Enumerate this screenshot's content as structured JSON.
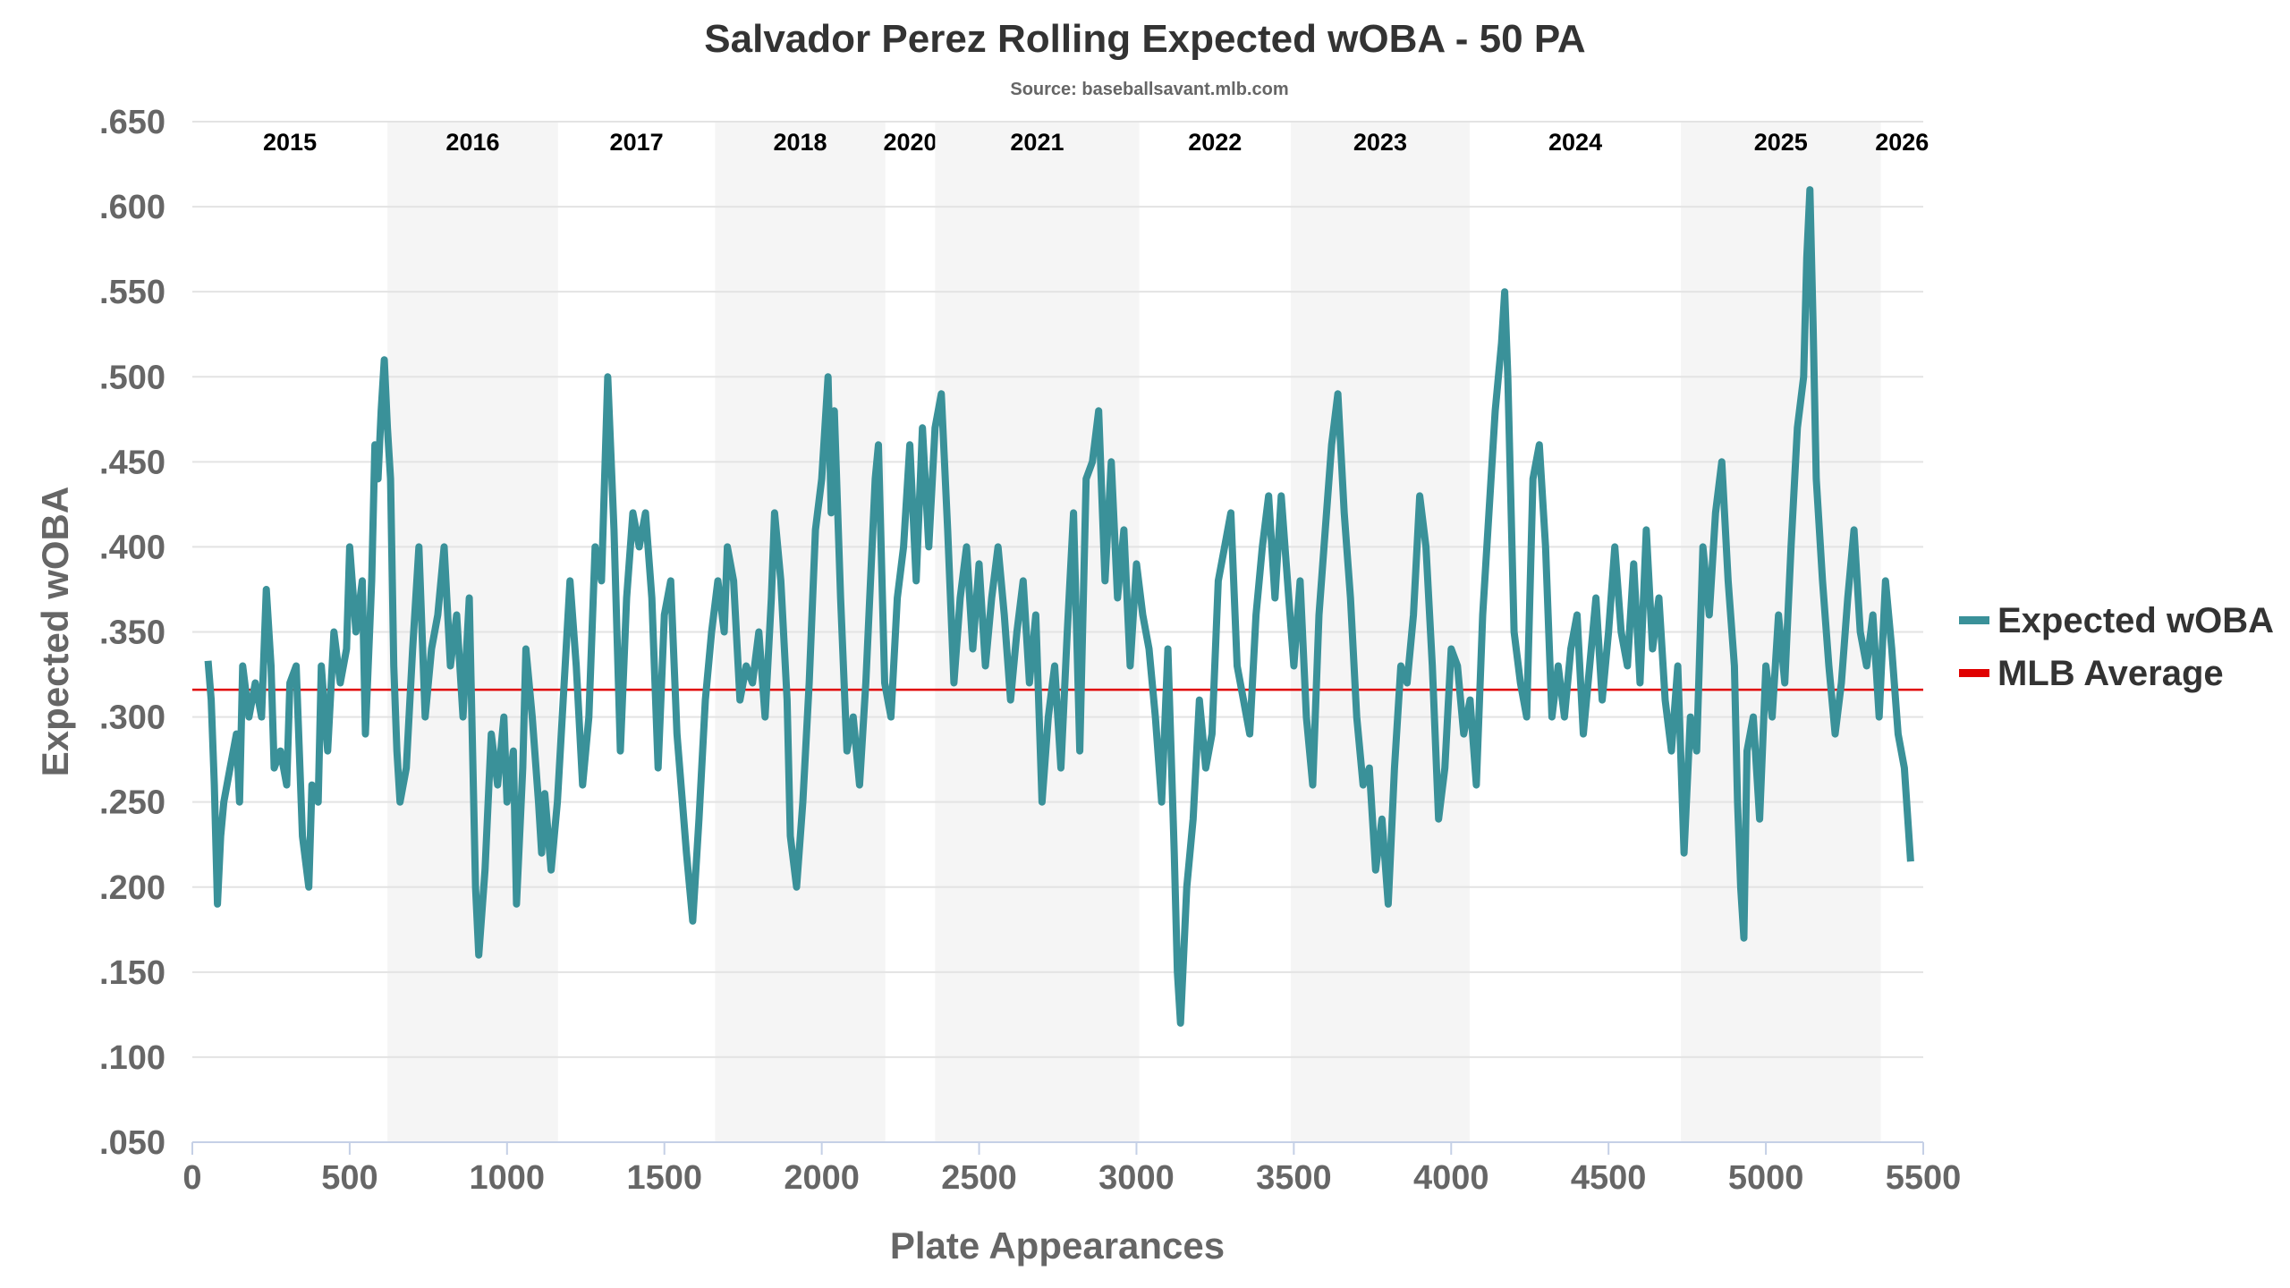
{
  "chart_data": {
    "type": "line",
    "title": "Salvador Perez Rolling Expected wOBA - 50 PA",
    "subtitle": "Source: baseballsavant.mlb.com",
    "xlabel": "Plate Appearances",
    "ylabel": "Expected wOBA",
    "xlim": [
      0,
      5500
    ],
    "ylim": [
      0.05,
      0.65
    ],
    "x_ticks": [
      0,
      500,
      1000,
      1500,
      2000,
      2500,
      3000,
      3500,
      4000,
      4500,
      5000,
      5500
    ],
    "y_ticks": [
      ".050",
      ".100",
      ".150",
      ".200",
      ".250",
      ".300",
      ".350",
      ".400",
      ".450",
      ".500",
      ".550",
      ".600",
      ".650"
    ],
    "grid": true,
    "legend_position": "right",
    "season_bands": [
      {
        "label": "2015",
        "start": 0,
        "end": 620,
        "shaded": false
      },
      {
        "label": "2016",
        "start": 620,
        "end": 1162,
        "shaded": true
      },
      {
        "label": "2017",
        "start": 1162,
        "end": 1661,
        "shaded": false
      },
      {
        "label": "2018",
        "start": 1661,
        "end": 2202,
        "shaded": true
      },
      {
        "label": "2020",
        "start": 2202,
        "end": 2360,
        "shaded": false
      },
      {
        "label": "2021",
        "start": 2360,
        "end": 3009,
        "shaded": true
      },
      {
        "label": "2022",
        "start": 3009,
        "end": 3490,
        "shaded": false
      },
      {
        "label": "2023",
        "start": 3490,
        "end": 4059,
        "shaded": true
      },
      {
        "label": "2024",
        "start": 4059,
        "end": 4730,
        "shaded": false
      },
      {
        "label": "2025",
        "start": 4730,
        "end": 5365,
        "shaded": true
      },
      {
        "label": "2026",
        "start": 5365,
        "end": 5500,
        "shaded": false
      }
    ],
    "mlb_average": 0.316,
    "series": [
      {
        "name": "Expected wOBA",
        "color": "#3a9199",
        "points": [
          [
            50,
            0.333
          ],
          [
            60,
            0.31
          ],
          [
            70,
            0.26
          ],
          [
            80,
            0.19
          ],
          [
            90,
            0.23
          ],
          [
            100,
            0.25
          ],
          [
            120,
            0.27
          ],
          [
            140,
            0.29
          ],
          [
            150,
            0.25
          ],
          [
            160,
            0.33
          ],
          [
            180,
            0.3
          ],
          [
            200,
            0.32
          ],
          [
            220,
            0.3
          ],
          [
            235,
            0.375
          ],
          [
            250,
            0.33
          ],
          [
            260,
            0.27
          ],
          [
            280,
            0.28
          ],
          [
            300,
            0.26
          ],
          [
            310,
            0.32
          ],
          [
            330,
            0.33
          ],
          [
            350,
            0.23
          ],
          [
            370,
            0.2
          ],
          [
            380,
            0.26
          ],
          [
            400,
            0.25
          ],
          [
            410,
            0.33
          ],
          [
            430,
            0.28
          ],
          [
            450,
            0.35
          ],
          [
            470,
            0.32
          ],
          [
            490,
            0.34
          ],
          [
            500,
            0.4
          ],
          [
            520,
            0.35
          ],
          [
            540,
            0.38
          ],
          [
            550,
            0.29
          ],
          [
            570,
            0.38
          ],
          [
            580,
            0.46
          ],
          [
            590,
            0.44
          ],
          [
            600,
            0.48
          ],
          [
            610,
            0.51
          ],
          [
            620,
            0.47
          ],
          [
            630,
            0.44
          ],
          [
            640,
            0.33
          ],
          [
            650,
            0.28
          ],
          [
            660,
            0.25
          ],
          [
            680,
            0.27
          ],
          [
            700,
            0.34
          ],
          [
            720,
            0.4
          ],
          [
            740,
            0.3
          ],
          [
            760,
            0.34
          ],
          [
            780,
            0.36
          ],
          [
            800,
            0.4
          ],
          [
            820,
            0.33
          ],
          [
            840,
            0.36
          ],
          [
            860,
            0.3
          ],
          [
            880,
            0.37
          ],
          [
            900,
            0.2
          ],
          [
            910,
            0.16
          ],
          [
            930,
            0.21
          ],
          [
            950,
            0.29
          ],
          [
            970,
            0.26
          ],
          [
            990,
            0.3
          ],
          [
            1000,
            0.25
          ],
          [
            1020,
            0.28
          ],
          [
            1030,
            0.19
          ],
          [
            1050,
            0.27
          ],
          [
            1060,
            0.34
          ],
          [
            1080,
            0.3
          ],
          [
            1100,
            0.25
          ],
          [
            1110,
            0.22
          ],
          [
            1120,
            0.255
          ],
          [
            1140,
            0.21
          ],
          [
            1160,
            0.25
          ],
          [
            1200,
            0.38
          ],
          [
            1220,
            0.33
          ],
          [
            1240,
            0.26
          ],
          [
            1260,
            0.3
          ],
          [
            1280,
            0.4
          ],
          [
            1300,
            0.38
          ],
          [
            1320,
            0.5
          ],
          [
            1340,
            0.41
          ],
          [
            1360,
            0.28
          ],
          [
            1380,
            0.37
          ],
          [
            1400,
            0.42
          ],
          [
            1420,
            0.4
          ],
          [
            1440,
            0.42
          ],
          [
            1460,
            0.37
          ],
          [
            1480,
            0.27
          ],
          [
            1500,
            0.36
          ],
          [
            1520,
            0.38
          ],
          [
            1540,
            0.29
          ],
          [
            1570,
            0.22
          ],
          [
            1590,
            0.18
          ],
          [
            1610,
            0.24
          ],
          [
            1630,
            0.31
          ],
          [
            1650,
            0.35
          ],
          [
            1670,
            0.38
          ],
          [
            1690,
            0.35
          ],
          [
            1700,
            0.4
          ],
          [
            1720,
            0.38
          ],
          [
            1740,
            0.31
          ],
          [
            1760,
            0.33
          ],
          [
            1780,
            0.32
          ],
          [
            1800,
            0.35
          ],
          [
            1820,
            0.3
          ],
          [
            1840,
            0.37
          ],
          [
            1850,
            0.42
          ],
          [
            1870,
            0.38
          ],
          [
            1890,
            0.31
          ],
          [
            1900,
            0.23
          ],
          [
            1920,
            0.2
          ],
          [
            1940,
            0.25
          ],
          [
            1960,
            0.32
          ],
          [
            1980,
            0.41
          ],
          [
            2000,
            0.44
          ],
          [
            2020,
            0.5
          ],
          [
            2030,
            0.42
          ],
          [
            2040,
            0.48
          ],
          [
            2060,
            0.37
          ],
          [
            2080,
            0.28
          ],
          [
            2100,
            0.3
          ],
          [
            2120,
            0.26
          ],
          [
            2140,
            0.32
          ],
          [
            2150,
            0.36
          ],
          [
            2170,
            0.44
          ],
          [
            2180,
            0.46
          ],
          [
            2200,
            0.32
          ],
          [
            2220,
            0.3
          ],
          [
            2240,
            0.37
          ],
          [
            2260,
            0.4
          ],
          [
            2280,
            0.46
          ],
          [
            2300,
            0.38
          ],
          [
            2320,
            0.47
          ],
          [
            2340,
            0.4
          ],
          [
            2360,
            0.47
          ],
          [
            2380,
            0.49
          ],
          [
            2400,
            0.41
          ],
          [
            2420,
            0.32
          ],
          [
            2440,
            0.37
          ],
          [
            2460,
            0.4
          ],
          [
            2480,
            0.34
          ],
          [
            2500,
            0.39
          ],
          [
            2520,
            0.33
          ],
          [
            2540,
            0.37
          ],
          [
            2560,
            0.4
          ],
          [
            2580,
            0.36
          ],
          [
            2600,
            0.31
          ],
          [
            2620,
            0.35
          ],
          [
            2640,
            0.38
          ],
          [
            2660,
            0.32
          ],
          [
            2680,
            0.36
          ],
          [
            2700,
            0.25
          ],
          [
            2720,
            0.3
          ],
          [
            2740,
            0.33
          ],
          [
            2760,
            0.27
          ],
          [
            2780,
            0.35
          ],
          [
            2800,
            0.42
          ],
          [
            2820,
            0.28
          ],
          [
            2840,
            0.44
          ],
          [
            2860,
            0.45
          ],
          [
            2880,
            0.48
          ],
          [
            2900,
            0.38
          ],
          [
            2920,
            0.45
          ],
          [
            2940,
            0.37
          ],
          [
            2960,
            0.41
          ],
          [
            2980,
            0.33
          ],
          [
            3000,
            0.39
          ],
          [
            3020,
            0.36
          ],
          [
            3040,
            0.34
          ],
          [
            3060,
            0.3
          ],
          [
            3080,
            0.25
          ],
          [
            3100,
            0.34
          ],
          [
            3120,
            0.22
          ],
          [
            3130,
            0.15
          ],
          [
            3140,
            0.12
          ],
          [
            3160,
            0.2
          ],
          [
            3180,
            0.24
          ],
          [
            3200,
            0.31
          ],
          [
            3220,
            0.27
          ],
          [
            3240,
            0.29
          ],
          [
            3260,
            0.38
          ],
          [
            3280,
            0.4
          ],
          [
            3300,
            0.42
          ],
          [
            3320,
            0.33
          ],
          [
            3340,
            0.31
          ],
          [
            3360,
            0.29
          ],
          [
            3380,
            0.36
          ],
          [
            3400,
            0.4
          ],
          [
            3420,
            0.43
          ],
          [
            3440,
            0.37
          ],
          [
            3460,
            0.43
          ],
          [
            3480,
            0.38
          ],
          [
            3500,
            0.33
          ],
          [
            3520,
            0.38
          ],
          [
            3540,
            0.3
          ],
          [
            3560,
            0.26
          ],
          [
            3580,
            0.36
          ],
          [
            3600,
            0.41
          ],
          [
            3620,
            0.46
          ],
          [
            3640,
            0.49
          ],
          [
            3660,
            0.42
          ],
          [
            3680,
            0.37
          ],
          [
            3700,
            0.3
          ],
          [
            3720,
            0.26
          ],
          [
            3740,
            0.27
          ],
          [
            3760,
            0.21
          ],
          [
            3780,
            0.24
          ],
          [
            3800,
            0.19
          ],
          [
            3820,
            0.27
          ],
          [
            3840,
            0.33
          ],
          [
            3860,
            0.32
          ],
          [
            3880,
            0.36
          ],
          [
            3900,
            0.43
          ],
          [
            3920,
            0.4
          ],
          [
            3940,
            0.33
          ],
          [
            3960,
            0.24
          ],
          [
            3980,
            0.27
          ],
          [
            4000,
            0.34
          ],
          [
            4020,
            0.33
          ],
          [
            4040,
            0.29
          ],
          [
            4060,
            0.31
          ],
          [
            4080,
            0.26
          ],
          [
            4100,
            0.36
          ],
          [
            4120,
            0.42
          ],
          [
            4140,
            0.48
          ],
          [
            4160,
            0.52
          ],
          [
            4170,
            0.55
          ],
          [
            4180,
            0.5
          ],
          [
            4200,
            0.35
          ],
          [
            4220,
            0.32
          ],
          [
            4240,
            0.3
          ],
          [
            4260,
            0.44
          ],
          [
            4280,
            0.46
          ],
          [
            4300,
            0.4
          ],
          [
            4320,
            0.3
          ],
          [
            4340,
            0.33
          ],
          [
            4360,
            0.3
          ],
          [
            4380,
            0.34
          ],
          [
            4400,
            0.36
          ],
          [
            4420,
            0.29
          ],
          [
            4440,
            0.33
          ],
          [
            4460,
            0.37
          ],
          [
            4480,
            0.31
          ],
          [
            4500,
            0.35
          ],
          [
            4520,
            0.4
          ],
          [
            4540,
            0.35
          ],
          [
            4560,
            0.33
          ],
          [
            4580,
            0.39
          ],
          [
            4600,
            0.32
          ],
          [
            4620,
            0.41
          ],
          [
            4640,
            0.34
          ],
          [
            4660,
            0.37
          ],
          [
            4680,
            0.31
          ],
          [
            4700,
            0.28
          ],
          [
            4720,
            0.33
          ],
          [
            4740,
            0.22
          ],
          [
            4760,
            0.3
          ],
          [
            4780,
            0.28
          ],
          [
            4800,
            0.4
          ],
          [
            4820,
            0.36
          ],
          [
            4840,
            0.42
          ],
          [
            4860,
            0.45
          ],
          [
            4880,
            0.38
          ],
          [
            4900,
            0.33
          ],
          [
            4910,
            0.25
          ],
          [
            4920,
            0.2
          ],
          [
            4930,
            0.17
          ],
          [
            4940,
            0.28
          ],
          [
            4960,
            0.3
          ],
          [
            4980,
            0.24
          ],
          [
            5000,
            0.33
          ],
          [
            5020,
            0.3
          ],
          [
            5040,
            0.36
          ],
          [
            5060,
            0.32
          ],
          [
            5080,
            0.4
          ],
          [
            5100,
            0.47
          ],
          [
            5120,
            0.5
          ],
          [
            5130,
            0.57
          ],
          [
            5140,
            0.61
          ],
          [
            5150,
            0.53
          ],
          [
            5160,
            0.44
          ],
          [
            5180,
            0.38
          ],
          [
            5200,
            0.33
          ],
          [
            5220,
            0.29
          ],
          [
            5240,
            0.32
          ],
          [
            5260,
            0.37
          ],
          [
            5280,
            0.41
          ],
          [
            5300,
            0.35
          ],
          [
            5320,
            0.33
          ],
          [
            5340,
            0.36
          ],
          [
            5360,
            0.3
          ],
          [
            5380,
            0.38
          ],
          [
            5400,
            0.34
          ],
          [
            5420,
            0.29
          ],
          [
            5440,
            0.27
          ],
          [
            5460,
            0.215
          ]
        ]
      },
      {
        "name": "MLB Average",
        "color": "#e00000"
      }
    ]
  }
}
